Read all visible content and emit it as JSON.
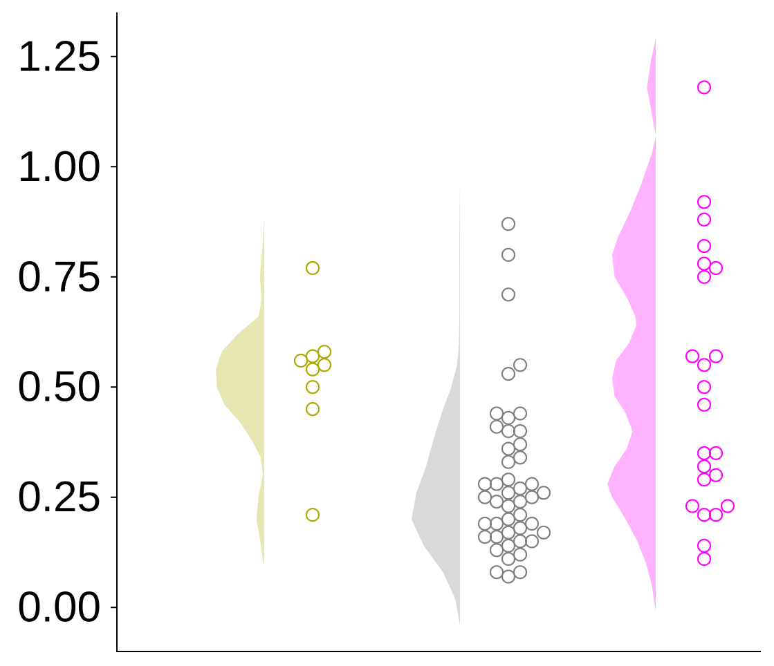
{
  "chart_data": {
    "type": "scatter",
    "subtype": "raincloud",
    "title": "",
    "xlabel": "",
    "ylabel": "",
    "ylim": [
      -0.1,
      1.35
    ],
    "yticks": [
      0.0,
      0.25,
      0.5,
      0.75,
      1.0,
      1.25
    ],
    "ytick_labels": [
      "0.00",
      "0.25",
      "0.50",
      "0.75",
      "1.00",
      "1.25"
    ],
    "grid": false,
    "legend": "none",
    "series": [
      {
        "color": "#aaaa00",
        "fill_color": "#e6e6b3",
        "density": {
          "y": [
            0.1,
            0.15,
            0.2,
            0.25,
            0.3,
            0.34,
            0.38,
            0.42,
            0.46,
            0.5,
            0.54,
            0.58,
            0.62,
            0.66,
            0.7,
            0.75,
            0.8,
            0.88
          ],
          "d": [
            0.02,
            0.08,
            0.16,
            0.12,
            0.03,
            0.07,
            0.26,
            0.5,
            0.82,
            0.98,
            1.0,
            0.88,
            0.55,
            0.12,
            0.05,
            0.09,
            0.05,
            0.0
          ]
        },
        "points": [
          {
            "y": 0.77
          },
          {
            "y": 0.58
          },
          {
            "y": 0.56
          },
          {
            "y": 0.54
          },
          {
            "y": 0.55
          },
          {
            "y": 0.57
          },
          {
            "y": 0.5
          },
          {
            "y": 0.45
          },
          {
            "y": 0.21
          }
        ]
      },
      {
        "color": "#808080",
        "fill_color": "#d9d9d9",
        "density": {
          "y": [
            -0.04,
            0.02,
            0.08,
            0.14,
            0.2,
            0.26,
            0.32,
            0.38,
            0.44,
            0.5,
            0.55,
            0.6,
            0.7,
            0.8,
            0.9,
            0.98
          ],
          "d": [
            0.0,
            0.1,
            0.35,
            0.75,
            1.0,
            0.9,
            0.7,
            0.55,
            0.38,
            0.18,
            0.06,
            0.02,
            0.01,
            0.015,
            0.005,
            0.0
          ]
        },
        "points": [
          {
            "y": 0.87
          },
          {
            "y": 0.8
          },
          {
            "y": 0.71
          },
          {
            "y": 0.55
          },
          {
            "y": 0.53
          },
          {
            "y": 0.44
          },
          {
            "y": 0.44
          },
          {
            "y": 0.43
          },
          {
            "y": 0.41
          },
          {
            "y": 0.4
          },
          {
            "y": 0.4
          },
          {
            "y": 0.37
          },
          {
            "y": 0.36
          },
          {
            "y": 0.34
          },
          {
            "y": 0.33
          },
          {
            "y": 0.29
          },
          {
            "y": 0.28
          },
          {
            "y": 0.28
          },
          {
            "y": 0.28
          },
          {
            "y": 0.27
          },
          {
            "y": 0.26
          },
          {
            "y": 0.26
          },
          {
            "y": 0.25
          },
          {
            "y": 0.25
          },
          {
            "y": 0.24
          },
          {
            "y": 0.24
          },
          {
            "y": 0.23
          },
          {
            "y": 0.21
          },
          {
            "y": 0.2
          },
          {
            "y": 0.19
          },
          {
            "y": 0.19
          },
          {
            "y": 0.19
          },
          {
            "y": 0.18
          },
          {
            "y": 0.17
          },
          {
            "y": 0.17
          },
          {
            "y": 0.16
          },
          {
            "y": 0.16
          },
          {
            "y": 0.15
          },
          {
            "y": 0.15
          },
          {
            "y": 0.14
          },
          {
            "y": 0.13
          },
          {
            "y": 0.12
          },
          {
            "y": 0.11
          },
          {
            "y": 0.08
          },
          {
            "y": 0.08
          },
          {
            "y": 0.07
          }
        ]
      },
      {
        "color": "#ff00ff",
        "fill_color": "#ffb3ff",
        "density": {
          "y": [
            -0.01,
            0.05,
            0.1,
            0.15,
            0.2,
            0.25,
            0.28,
            0.32,
            0.36,
            0.4,
            0.44,
            0.48,
            0.52,
            0.56,
            0.6,
            0.64,
            0.66,
            0.7,
            0.75,
            0.8,
            0.84,
            0.9,
            0.96,
            1.03,
            1.07,
            1.12,
            1.18,
            1.24,
            1.29
          ],
          "d": [
            0.0,
            0.08,
            0.2,
            0.38,
            0.62,
            0.9,
            1.0,
            0.85,
            0.6,
            0.48,
            0.62,
            0.85,
            0.9,
            0.82,
            0.55,
            0.4,
            0.42,
            0.58,
            0.85,
            0.9,
            0.78,
            0.52,
            0.3,
            0.08,
            0.0,
            0.08,
            0.18,
            0.1,
            0.0
          ]
        },
        "points": [
          {
            "y": 1.18
          },
          {
            "y": 0.92
          },
          {
            "y": 0.88
          },
          {
            "y": 0.82
          },
          {
            "y": 0.78
          },
          {
            "y": 0.77
          },
          {
            "y": 0.75
          },
          {
            "y": 0.57
          },
          {
            "y": 0.57
          },
          {
            "y": 0.55
          },
          {
            "y": 0.5
          },
          {
            "y": 0.46
          },
          {
            "y": 0.35
          },
          {
            "y": 0.35
          },
          {
            "y": 0.32
          },
          {
            "y": 0.3
          },
          {
            "y": 0.29
          },
          {
            "y": 0.23
          },
          {
            "y": 0.23
          },
          {
            "y": 0.21
          },
          {
            "y": 0.21
          },
          {
            "y": 0.14
          },
          {
            "y": 0.11
          }
        ]
      }
    ]
  }
}
